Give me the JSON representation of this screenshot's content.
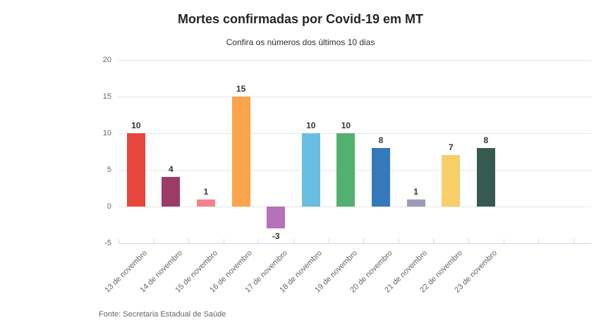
{
  "footer": {
    "source": "Fonte: Secretaria Estadual de Saúde"
  },
  "chart_data": {
    "type": "bar",
    "title": "Mortes confirmadas por Covid-19 em MT",
    "subtitle": "Confira os números dos últimos 10 dias",
    "categories": [
      "13 de novembro",
      "14 de novembro",
      "15 de novembro",
      "16 de novembro",
      "17 de novembro",
      "18 de novembro",
      "19 de novembro",
      "20 de novembro",
      "21 de novembro",
      "22 de novembro",
      "23 de novembro"
    ],
    "values": [
      10,
      4,
      1,
      15,
      -3,
      10,
      10,
      8,
      1,
      7,
      8
    ],
    "bar_colors": [
      "#e8453c",
      "#9e3a66",
      "#f8808c",
      "#fba44c",
      "#b671b8",
      "#67bee2",
      "#53b16f",
      "#3578bc",
      "#9b9cba",
      "#f8ce68",
      "#365a50"
    ],
    "xlabel": "",
    "ylabel": "",
    "yticks": [
      20,
      15,
      10,
      5,
      0,
      -5
    ],
    "ylim": [
      -5,
      20
    ],
    "grid": true,
    "legend": "none",
    "grid_color": "#e6e6e6",
    "axis_color": "#ccd6eb",
    "data_label_color": "#333333",
    "tick_label_color": "#666666"
  }
}
